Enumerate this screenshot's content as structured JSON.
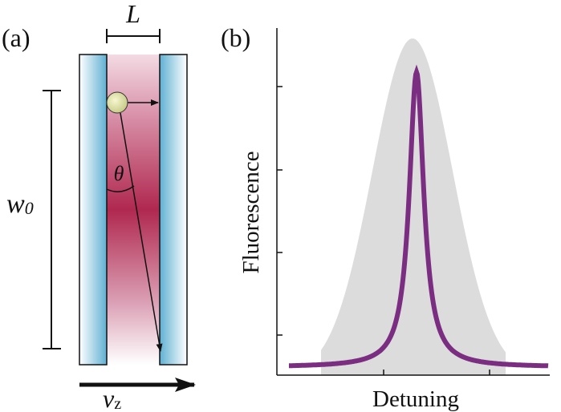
{
  "panel_a": {
    "label": "(a)",
    "width_label": "L",
    "angle_label": "θ",
    "beam_waist": "w",
    "beam_waist_sub": "0",
    "velocity": "v",
    "velocity_sub": "z"
  },
  "panel_b": {
    "label": "(b)",
    "y_axis_label": "Fluorescence",
    "x_axis_label": "Detuning"
  }
}
